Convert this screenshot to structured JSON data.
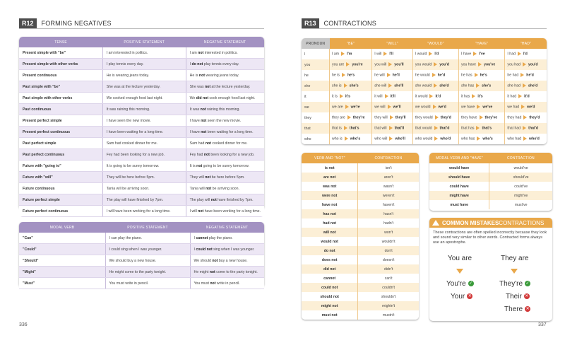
{
  "left": {
    "code": "R12",
    "title": "FORMING NEGATIVES",
    "page_number": "336",
    "table1": {
      "headers": [
        "TENSE",
        "POSITIVE STATEMENT",
        "NEGATIVE STATEMENT"
      ],
      "rows": [
        [
          "Present simple with \"be\"",
          "I am interested in politics.",
          "I am ",
          "not",
          " interested in politics."
        ],
        [
          "Present simple with other verbs",
          "I play tennis every day.",
          "I ",
          "do not",
          " play tennis every day."
        ],
        [
          "Present continuous",
          "He is wearing jeans today.",
          "He is ",
          "not",
          " wearing jeans today."
        ],
        [
          "Past simple with \"be\"",
          "She was at the lecture yesterday.",
          "She was ",
          "not",
          " at the lecture yesterday."
        ],
        [
          "Past simple with other verbs",
          "We cooked enough food last night.",
          "We ",
          "did not",
          " cook enough food last night."
        ],
        [
          "Past continuous",
          "It was raining this morning.",
          "It was ",
          "not",
          " raining this morning."
        ],
        [
          "Present perfect simple",
          "I have seen the new movie.",
          "I have ",
          "not",
          " seen the new movie."
        ],
        [
          "Present perfect continuous",
          "I have been waiting for a long time.",
          "I have ",
          "not",
          " been waiting for a long time."
        ],
        [
          "Past perfect simple",
          "Sam had cooked dinner for me.",
          "Sam had ",
          "not",
          " cooked dinner for me."
        ],
        [
          "Past perfect continuous",
          "Fey had been looking for a new job.",
          "Fey had ",
          "not",
          " been looking for a new job."
        ],
        [
          "Future with \"going to\"",
          "It is going to be sunny tomorrow.",
          "It is ",
          "not",
          " going to be sunny tomorrow."
        ],
        [
          "Future with \"will\"",
          "They will be here before 5pm.",
          "They will ",
          "not",
          " be here before 5pm."
        ],
        [
          "Future continuous",
          "Tania will be arriving soon.",
          "Tania will ",
          "not",
          " be arriving soon."
        ],
        [
          "Future perfect simple",
          "The play will have finished by 7pm.",
          "The play will ",
          "not",
          " have finished by 7pm."
        ],
        [
          "Future perfect continuous",
          "I will have been working for a long time.",
          "I will ",
          "not",
          " have been working for a long time."
        ]
      ]
    },
    "table2": {
      "headers": [
        "MODAL VERB",
        "POSITIVE STATEMENT",
        "NEGATIVE STATEMENT"
      ],
      "rows": [
        [
          "\"Can\"",
          "I can play the piano.",
          "I ",
          "cannot",
          " play the piano."
        ],
        [
          "\"Could\"",
          "I could sing when I was younger.",
          "I ",
          "could not",
          " sing when I was younger."
        ],
        [
          "\"Should\"",
          "We should buy a new house.",
          "We should ",
          "not",
          " buy a new house."
        ],
        [
          "\"Might\"",
          "He might come to the party tonight.",
          "He might ",
          "not",
          " come to the party tonight."
        ],
        [
          "\"Must\"",
          "You must write in pencil.",
          "You must ",
          "not",
          " write in pencil."
        ]
      ]
    }
  },
  "right": {
    "code": "R13",
    "title": "CONTRACTIONS",
    "page_number": "337",
    "contractions": {
      "headers": [
        "PRONOUN",
        "\"BE\"",
        "\"WILL\"",
        "\"WOULD\"",
        "\"HAVE\"",
        "\"HAD\""
      ],
      "rows": [
        [
          "I",
          [
            "I am",
            "I'm"
          ],
          [
            "I will",
            "I'll"
          ],
          [
            "I would",
            "I'd"
          ],
          [
            "I have",
            "I've"
          ],
          [
            "I had",
            "I'd"
          ]
        ],
        [
          "you",
          [
            "you are",
            "you're"
          ],
          [
            "you will",
            "you'll"
          ],
          [
            "you would",
            "you'd"
          ],
          [
            "you have",
            "you've"
          ],
          [
            "you had",
            "you'd"
          ]
        ],
        [
          "he",
          [
            "he is",
            "he's"
          ],
          [
            "he will",
            "he'll"
          ],
          [
            "he would",
            "he'd"
          ],
          [
            "he has",
            "he's"
          ],
          [
            "he had",
            "he'd"
          ]
        ],
        [
          "she",
          [
            "she is",
            "she's"
          ],
          [
            "she will",
            "she'll"
          ],
          [
            "she would",
            "she'd"
          ],
          [
            "she has",
            "she's"
          ],
          [
            "she had",
            "she'd"
          ]
        ],
        [
          "it",
          [
            "it is",
            "it's"
          ],
          [
            "it will",
            "it'll"
          ],
          [
            "it would",
            "it'd"
          ],
          [
            "it has",
            "it's"
          ],
          [
            "it had",
            "it'd"
          ]
        ],
        [
          "we",
          [
            "we are",
            "we're"
          ],
          [
            "we will",
            "we'll"
          ],
          [
            "we would",
            "we'd"
          ],
          [
            "we have",
            "we've"
          ],
          [
            "we had",
            "we'd"
          ]
        ],
        [
          "they",
          [
            "they are",
            "they're"
          ],
          [
            "they will",
            "they'll"
          ],
          [
            "they would",
            "they'd"
          ],
          [
            "they have",
            "they've"
          ],
          [
            "they had",
            "they'd"
          ]
        ],
        [
          "that",
          [
            "that is",
            "that's"
          ],
          [
            "that will",
            "that'll"
          ],
          [
            "that would",
            "that'd"
          ],
          [
            "that has",
            "that's"
          ],
          [
            "that had",
            "that'd"
          ]
        ],
        [
          "who",
          [
            "who is",
            "who's"
          ],
          [
            "who will",
            "who'll"
          ],
          [
            "who would",
            "who'd"
          ],
          [
            "who has",
            "who's"
          ],
          [
            "who had",
            "who'd"
          ]
        ]
      ]
    },
    "verb_not": {
      "headers": [
        "VERB AND \"NOT\"",
        "CONTRACTION"
      ],
      "rows": [
        [
          "is not",
          "isn't"
        ],
        [
          "are not",
          "aren't"
        ],
        [
          "was not",
          "wasn't"
        ],
        [
          "were not",
          "weren't"
        ],
        [
          "have not",
          "haven't"
        ],
        [
          "has not",
          "hasn't"
        ],
        [
          "had not",
          "hadn't"
        ],
        [
          "will not",
          "won't"
        ],
        [
          "would not",
          "wouldn't"
        ],
        [
          "do not",
          "don't"
        ],
        [
          "does not",
          "doesn't"
        ],
        [
          "did not",
          "didn't"
        ],
        [
          "cannot",
          "can't"
        ],
        [
          "could not",
          "couldn't"
        ],
        [
          "should not",
          "shouldn't"
        ],
        [
          "might not",
          "mightn't"
        ],
        [
          "must not",
          "mustn't"
        ]
      ]
    },
    "modal_have": {
      "headers": [
        "MODAL VERB AND \"HAVE\"",
        "CONTRACTION"
      ],
      "rows": [
        [
          "would have",
          "would've"
        ],
        [
          "should have",
          "should've"
        ],
        [
          "could have",
          "could've"
        ],
        [
          "might have",
          "might've"
        ],
        [
          "must have",
          "must've"
        ]
      ]
    },
    "common_mistakes": {
      "title_a": "COMMON MISTAKES",
      "title_b": " CONTRACTIONS",
      "text": "These contractions are often spelled incorrectly because they look and sound very similar to other words. Contracted forms always use an apostrophe.",
      "left_top": "You are",
      "left_correct": "You're",
      "left_wrong": "Your",
      "right_top": "They are",
      "right_correct": "They're",
      "right_wrong1": "Their",
      "right_wrong2": "There",
      "colors": {
        "correct": "#3a9a3a",
        "wrong": "#d23a3a",
        "accent": "#e9a84a"
      }
    }
  }
}
